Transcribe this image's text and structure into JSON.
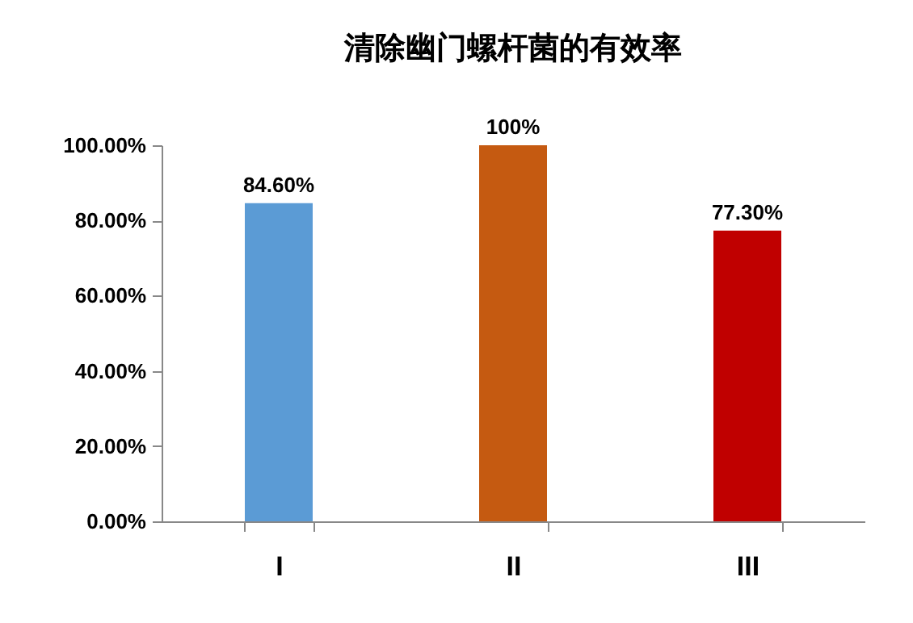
{
  "chart_data": {
    "type": "bar",
    "title": "清除幽门螺杆菌的有效率",
    "categories": [
      "I",
      "II",
      "III"
    ],
    "values": [
      84.6,
      100,
      77.3
    ],
    "colors": [
      "#5b9bd5",
      "#c55a11",
      "#c00000"
    ],
    "value_labels": [
      "84.60%",
      "100%",
      "77.30%"
    ],
    "ylim": [
      0,
      100
    ],
    "yticks": [
      {
        "value": 0,
        "label": "0.00%"
      },
      {
        "value": 20,
        "label": "20.00%"
      },
      {
        "value": 40,
        "label": "40.00%"
      },
      {
        "value": 60,
        "label": "60.00%"
      },
      {
        "value": 80,
        "label": "80.00%"
      },
      {
        "value": 100,
        "label": "100.00%"
      }
    ]
  }
}
